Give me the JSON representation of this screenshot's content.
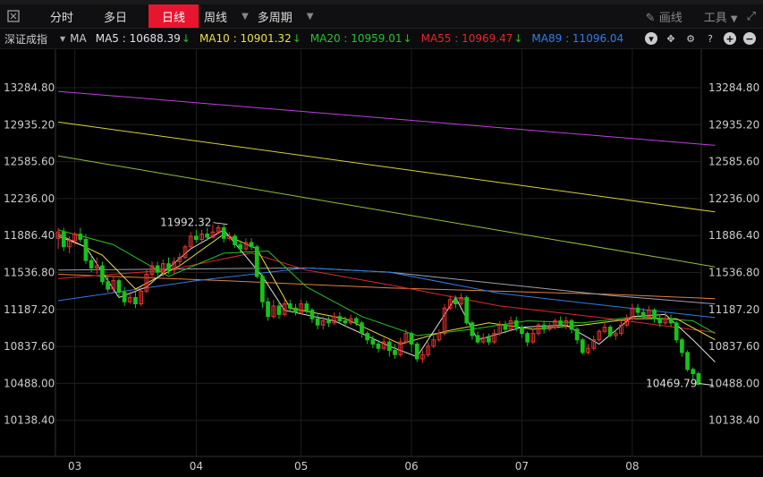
{
  "toolbar": {
    "tabs": [
      {
        "label": "分时",
        "active": false
      },
      {
        "label": "多日",
        "active": false
      },
      {
        "label": "日线",
        "active": true
      },
      {
        "label": "周线",
        "active": false
      },
      {
        "label": "多周期",
        "active": false
      }
    ],
    "draw_label": "画线",
    "tools_label": "工具"
  },
  "ma_bar": {
    "symbol": "深证成指",
    "ma_label": "MA",
    "items": [
      {
        "text": "MA5 : 10688.39",
        "color": "#e0e0e0"
      },
      {
        "text": "MA10 : 10901.32",
        "color": "#e8e040"
      },
      {
        "text": "MA20 : 10959.01",
        "color": "#27c227"
      },
      {
        "text": "MA55 : 10969.47",
        "color": "#e02828"
      },
      {
        "text": "MA89 : 11096.04",
        "color": "#2f7de8"
      }
    ]
  },
  "chart_data": {
    "type": "candlestick",
    "y_ticks": [
      "13284.80",
      "12935.20",
      "12585.60",
      "12236.00",
      "11886.40",
      "11536.80",
      "11187.20",
      "10837.60",
      "10488.00",
      "10138.40"
    ],
    "ylim": [
      10000,
      13400
    ],
    "x_labels": [
      {
        "label": "03",
        "index": 3
      },
      {
        "label": "04",
        "index": 25
      },
      {
        "label": "05",
        "index": 44
      },
      {
        "label": "06",
        "index": 64
      },
      {
        "label": "07",
        "index": 84
      },
      {
        "label": "08",
        "index": 104
      }
    ],
    "annotations": [
      {
        "text": "11992.32",
        "index": 31,
        "value": 11992.32,
        "side": "left"
      },
      {
        "text": "10469.79",
        "index": 119,
        "value": 10469.79,
        "side": "left"
      }
    ],
    "colors": {
      "up": "#e83232",
      "down": "#19c21a",
      "ma5": "#e0e0e0",
      "ma10": "#e8e040",
      "ma20": "#27c227",
      "ma55": "#e02828",
      "ma89": "#2f7de8",
      "ma_long1": "#c040e0",
      "ma_long2": "#d8d040",
      "ma_long3": "#90c040",
      "ma_long4": "#e08040",
      "ma_long5": "#a0a0b0"
    },
    "candles": [
      [
        11860,
        11920,
        11960,
        11760
      ],
      [
        11920,
        11780,
        11960,
        11740
      ],
      [
        11780,
        11840,
        11880,
        11720
      ],
      [
        11840,
        11900,
        11920,
        11800
      ],
      [
        11900,
        11850,
        11960,
        11820
      ],
      [
        11850,
        11650,
        11900,
        11620
      ],
      [
        11650,
        11580,
        11700,
        11540
      ],
      [
        11580,
        11600,
        11680,
        11520
      ],
      [
        11600,
        11450,
        11640,
        11420
      ],
      [
        11450,
        11380,
        11500,
        11350
      ],
      [
        11380,
        11460,
        11500,
        11340
      ],
      [
        11460,
        11350,
        11480,
        11300
      ],
      [
        11350,
        11260,
        11400,
        11220
      ],
      [
        11260,
        11300,
        11360,
        11240
      ],
      [
        11300,
        11240,
        11360,
        11200
      ],
      [
        11240,
        11360,
        11400,
        11220
      ],
      [
        11360,
        11520,
        11560,
        11340
      ],
      [
        11520,
        11600,
        11640,
        11480
      ],
      [
        11600,
        11540,
        11640,
        11500
      ],
      [
        11540,
        11620,
        11660,
        11500
      ],
      [
        11620,
        11560,
        11680,
        11520
      ],
      [
        11560,
        11640,
        11680,
        11520
      ],
      [
        11640,
        11680,
        11720,
        11600
      ],
      [
        11680,
        11780,
        11800,
        11660
      ],
      [
        11780,
        11880,
        11920,
        11760
      ],
      [
        11880,
        11850,
        11940,
        11820
      ],
      [
        11850,
        11900,
        11940,
        11820
      ],
      [
        11900,
        11870,
        11960,
        11840
      ],
      [
        11870,
        11920,
        11990,
        11860
      ],
      [
        11920,
        11960,
        11992,
        11900
      ],
      [
        11960,
        11860,
        11990,
        11820
      ],
      [
        11860,
        11880,
        11920,
        11840
      ],
      [
        11880,
        11800,
        11900,
        11770
      ],
      [
        11800,
        11760,
        11840,
        11720
      ],
      [
        11760,
        11820,
        11860,
        11740
      ],
      [
        11820,
        11780,
        11860,
        11750
      ],
      [
        11780,
        11500,
        11800,
        11480
      ],
      [
        11500,
        11260,
        11520,
        11200
      ],
      [
        11260,
        11120,
        11300,
        11080
      ],
      [
        11120,
        11220,
        11280,
        11100
      ],
      [
        11220,
        11140,
        11260,
        11100
      ],
      [
        11140,
        11240,
        11280,
        11120
      ],
      [
        11240,
        11200,
        11280,
        11160
      ],
      [
        11200,
        11160,
        11240,
        11130
      ],
      [
        11160,
        11240,
        11280,
        11140
      ],
      [
        11240,
        11180,
        11270,
        11150
      ],
      [
        11180,
        11100,
        11200,
        11060
      ],
      [
        11100,
        11040,
        11140,
        11000
      ],
      [
        11040,
        11080,
        11120,
        11000
      ],
      [
        11080,
        11060,
        11120,
        11020
      ],
      [
        11060,
        11120,
        11160,
        11040
      ],
      [
        11120,
        11080,
        11160,
        11050
      ],
      [
        11080,
        11060,
        11120,
        11020
      ],
      [
        11060,
        11100,
        11140,
        11040
      ],
      [
        11100,
        11060,
        11120,
        11030
      ],
      [
        11060,
        10960,
        11080,
        10920
      ],
      [
        10960,
        10900,
        10980,
        10860
      ],
      [
        10900,
        10860,
        10940,
        10820
      ],
      [
        10860,
        10820,
        10900,
        10780
      ],
      [
        10820,
        10880,
        10920,
        10800
      ],
      [
        10880,
        10800,
        10900,
        10740
      ],
      [
        10800,
        10760,
        10860,
        10720
      ],
      [
        10760,
        10880,
        10920,
        10740
      ],
      [
        10880,
        10960,
        11000,
        10860
      ],
      [
        10960,
        10860,
        10980,
        10780
      ],
      [
        10860,
        10720,
        10880,
        10690
      ],
      [
        10720,
        10760,
        10800,
        10680
      ],
      [
        10760,
        10840,
        10880,
        10740
      ],
      [
        10840,
        10900,
        10940,
        10820
      ],
      [
        10900,
        10960,
        11000,
        10880
      ],
      [
        10960,
        11200,
        11240,
        10940
      ],
      [
        11200,
        11280,
        11320,
        11180
      ],
      [
        11280,
        11240,
        11320,
        11200
      ],
      [
        11240,
        11300,
        11340,
        11220
      ],
      [
        11300,
        11060,
        11320,
        11040
      ],
      [
        11060,
        10940,
        11080,
        10900
      ],
      [
        10940,
        10880,
        10980,
        10860
      ],
      [
        10880,
        10920,
        10960,
        10860
      ],
      [
        10920,
        10880,
        10960,
        10850
      ],
      [
        10880,
        10960,
        11000,
        10860
      ],
      [
        10960,
        11040,
        11080,
        10940
      ],
      [
        11040,
        11000,
        11080,
        10960
      ],
      [
        11000,
        11080,
        11120,
        10980
      ],
      [
        11080,
        11020,
        11120,
        10980
      ],
      [
        11020,
        10960,
        11040,
        10920
      ],
      [
        10960,
        10880,
        10980,
        10840
      ],
      [
        10880,
        10960,
        11000,
        10860
      ],
      [
        10960,
        11040,
        11060,
        10940
      ],
      [
        11040,
        11000,
        11080,
        10960
      ],
      [
        11000,
        11020,
        11060,
        10980
      ],
      [
        11020,
        11080,
        11100,
        11000
      ],
      [
        11080,
        11040,
        11120,
        11020
      ],
      [
        11040,
        11080,
        11120,
        11000
      ],
      [
        11080,
        11000,
        11100,
        10960
      ],
      [
        11000,
        10900,
        11020,
        10860
      ],
      [
        10900,
        10780,
        10920,
        10760
      ],
      [
        10780,
        10820,
        10860,
        10760
      ],
      [
        10820,
        10900,
        10940,
        10800
      ],
      [
        10900,
        10980,
        11000,
        10880
      ],
      [
        10980,
        11020,
        11060,
        10960
      ],
      [
        11020,
        10940,
        11040,
        10920
      ],
      [
        10940,
        10960,
        11000,
        10900
      ],
      [
        10960,
        11040,
        11080,
        10940
      ],
      [
        11040,
        11100,
        11140,
        11020
      ],
      [
        11100,
        11200,
        11240,
        11080
      ],
      [
        11200,
        11160,
        11240,
        11120
      ],
      [
        11160,
        11120,
        11200,
        11100
      ],
      [
        11120,
        11180,
        11220,
        11100
      ],
      [
        11180,
        11100,
        11200,
        11060
      ],
      [
        11100,
        11060,
        11140,
        11020
      ],
      [
        11060,
        11100,
        11160,
        11040
      ],
      [
        11100,
        11060,
        11140,
        11020
      ],
      [
        11060,
        10900,
        11080,
        10870
      ],
      [
        10900,
        10780,
        10920,
        10740
      ],
      [
        10780,
        10620,
        10800,
        10600
      ],
      [
        10620,
        10580,
        10640,
        10520
      ],
      [
        10580,
        10480,
        10600,
        10470
      ]
    ],
    "ma_lines": {
      "ma_long1": [
        [
          0,
          13250
        ],
        [
          119,
          12740
        ]
      ],
      "ma_long2": [
        [
          0,
          12960
        ],
        [
          119,
          12110
        ]
      ],
      "ma_long3": [
        [
          0,
          12640
        ],
        [
          119,
          11590
        ]
      ],
      "ma_long4": [
        [
          0,
          11520
        ],
        [
          30,
          11460
        ],
        [
          60,
          11390
        ],
        [
          100,
          11330
        ],
        [
          119,
          11290
        ]
      ],
      "ma_long5": [
        [
          0,
          11560
        ],
        [
          45,
          11580
        ],
        [
          60,
          11540
        ],
        [
          100,
          11320
        ],
        [
          119,
          11240
        ]
      ],
      "ma89": [
        [
          0,
          11270
        ],
        [
          25,
          11460
        ],
        [
          45,
          11580
        ],
        [
          60,
          11540
        ],
        [
          80,
          11340
        ],
        [
          100,
          11220
        ],
        [
          119,
          11110
        ]
      ],
      "ma55": [
        [
          0,
          11480
        ],
        [
          20,
          11560
        ],
        [
          35,
          11720
        ],
        [
          45,
          11560
        ],
        [
          60,
          11420
        ],
        [
          80,
          11220
        ],
        [
          100,
          11100
        ],
        [
          119,
          10970
        ]
      ],
      "ma20": [
        [
          0,
          11940
        ],
        [
          10,
          11800
        ],
        [
          20,
          11500
        ],
        [
          30,
          11720
        ],
        [
          38,
          11740
        ],
        [
          45,
          11400
        ],
        [
          55,
          11120
        ],
        [
          65,
          10940
        ],
        [
          75,
          11000
        ],
        [
          85,
          11080
        ],
        [
          95,
          11060
        ],
        [
          105,
          11120
        ],
        [
          115,
          11080
        ],
        [
          119,
          10960
        ]
      ],
      "ma10": [
        [
          0,
          11900
        ],
        [
          8,
          11700
        ],
        [
          14,
          11380
        ],
        [
          22,
          11600
        ],
        [
          30,
          11900
        ],
        [
          36,
          11760
        ],
        [
          42,
          11200
        ],
        [
          52,
          11100
        ],
        [
          62,
          10860
        ],
        [
          70,
          10980
        ],
        [
          78,
          11060
        ],
        [
          86,
          11000
        ],
        [
          95,
          11040
        ],
        [
          104,
          11100
        ],
        [
          112,
          11100
        ],
        [
          119,
          10900
        ]
      ],
      "ma5": [
        [
          0,
          11880
        ],
        [
          5,
          11780
        ],
        [
          11,
          11300
        ],
        [
          16,
          11400
        ],
        [
          24,
          11760
        ],
        [
          30,
          11940
        ],
        [
          37,
          11500
        ],
        [
          41,
          11180
        ],
        [
          50,
          11080
        ],
        [
          60,
          10840
        ],
        [
          65,
          10740
        ],
        [
          72,
          11300
        ],
        [
          76,
          10900
        ],
        [
          84,
          11020
        ],
        [
          92,
          11040
        ],
        [
          98,
          10860
        ],
        [
          104,
          11120
        ],
        [
          110,
          11140
        ],
        [
          115,
          10900
        ],
        [
          119,
          10690
        ]
      ]
    }
  }
}
